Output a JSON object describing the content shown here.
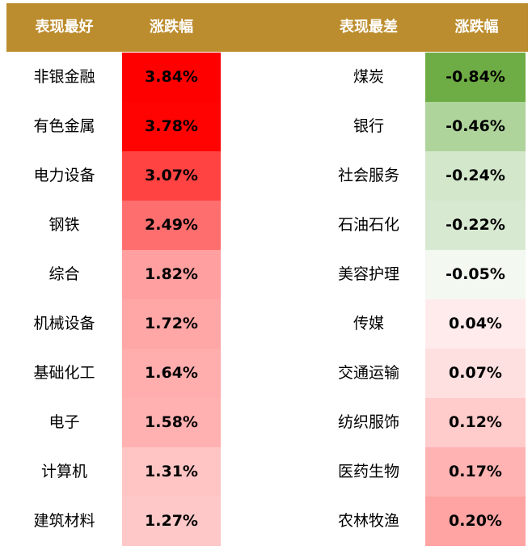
{
  "header": {
    "best_label": "表现最好",
    "change_label_left": "涨跌幅",
    "worst_label": "表现最差",
    "change_label_right": "涨跌幅",
    "color": "#BC8D2E"
  },
  "best": [
    {
      "name": "非银金融",
      "change": "3.84%",
      "color": "#FF0000"
    },
    {
      "name": "有色金属",
      "change": "3.78%",
      "color": "#FF0303"
    },
    {
      "name": "电力设备",
      "change": "3.07%",
      "color": "#FF4242"
    },
    {
      "name": "钢铁",
      "change": "2.49%",
      "color": "#FF6E6E"
    },
    {
      "name": "综合",
      "change": "1.82%",
      "color": "#FF9F9F"
    },
    {
      "name": "机械设备",
      "change": "1.72%",
      "color": "#FFA6A6"
    },
    {
      "name": "基础化工",
      "change": "1.64%",
      "color": "#FFADAD"
    },
    {
      "name": "电子",
      "change": "1.58%",
      "color": "#FFB1B1"
    },
    {
      "name": "计算机",
      "change": "1.31%",
      "color": "#FFC5C5"
    },
    {
      "name": "建筑材料",
      "change": "1.27%",
      "color": "#FFC8C8"
    }
  ],
  "worst": [
    {
      "name": "煤炭",
      "change": "-0.84%",
      "color": "#6EAC45"
    },
    {
      "name": "银行",
      "change": "-0.46%",
      "color": "#AFD49B"
    },
    {
      "name": "社会服务",
      "change": "-0.24%",
      "color": "#D3E7CB"
    },
    {
      "name": "石油石化",
      "change": "-0.22%",
      "color": "#D8E9D1"
    },
    {
      "name": "美容护理",
      "change": "-0.05%",
      "color": "#F3F8F1"
    },
    {
      "name": "传媒",
      "change": "0.04%",
      "color": "#FFEBEB"
    },
    {
      "name": "交通运输",
      "change": "0.07%",
      "color": "#FFE0E0"
    },
    {
      "name": "纺织服饰",
      "change": "0.12%",
      "color": "#FFCBCB"
    },
    {
      "name": "医药生物",
      "change": "0.17%",
      "color": "#FFB3B3"
    },
    {
      "name": "农林牧渔",
      "change": "0.20%",
      "color": "#FFA3A3"
    }
  ]
}
